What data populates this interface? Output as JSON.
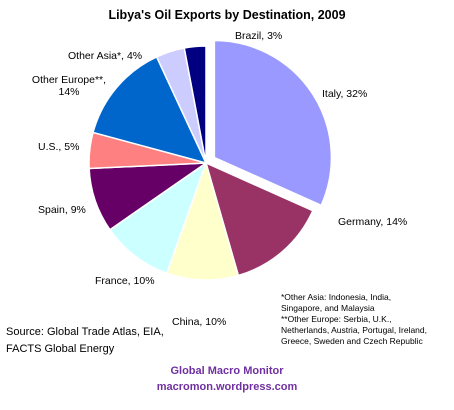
{
  "chart_data": {
    "type": "pie",
    "title": "Libya's Oil Exports by Destination, 2009",
    "categories": [
      "Italy, 32%",
      "Germany, 14%",
      "China, 10%",
      "France, 10%",
      "Spain, 9%",
      "U.S., 5%",
      "Other Europe**, 14%",
      "Other Asia*, 4%",
      "Brazil, 3%"
    ],
    "values": [
      32,
      14,
      10,
      10,
      9,
      5,
      14,
      4,
      3
    ],
    "colors": [
      "#9999ff",
      "#993366",
      "#ffffcc",
      "#ccffff",
      "#660066",
      "#ff8080",
      "#0066cc",
      "#ccccff",
      "#000080"
    ],
    "footnotes": [
      "*Other Asia: Indonesia, India,",
      "Singapore, and Malaysia",
      "**Other Europe: Serbia, U.K.,",
      "Netherlands, Austria, Portugal, Ireland,",
      "Greece, Sweden and Czech Republic"
    ],
    "source": [
      "Source: Global Trade Atlas, EIA,",
      "FACTS Global Energy"
    ],
    "footer": [
      "Global Macro Monitor",
      "macromon.wordpress.com"
    ]
  }
}
